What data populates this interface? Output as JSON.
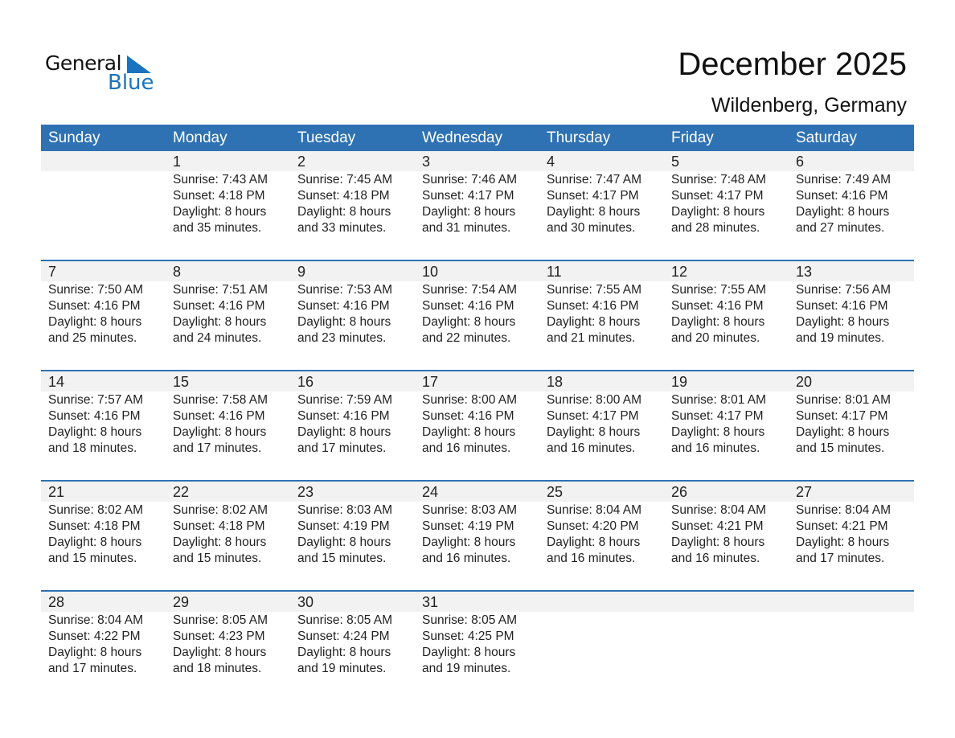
{
  "logo": {
    "text1": "General",
    "text2": "Blue",
    "color": "#1a73be"
  },
  "title": "December 2025",
  "location": "Wildenberg, Germany",
  "colors": {
    "header": "#2e72b3",
    "band": "#f2f2f2"
  },
  "weekdays": [
    "Sunday",
    "Monday",
    "Tuesday",
    "Wednesday",
    "Thursday",
    "Friday",
    "Saturday"
  ],
  "weeks": [
    [
      null,
      {
        "day": "1",
        "sunrise": "Sunrise: 7:43 AM",
        "sunset": "Sunset: 4:18 PM",
        "daylight": "Daylight: 8 hours",
        "minutes": "and 35 minutes."
      },
      {
        "day": "2",
        "sunrise": "Sunrise: 7:45 AM",
        "sunset": "Sunset: 4:18 PM",
        "daylight": "Daylight: 8 hours",
        "minutes": "and 33 minutes."
      },
      {
        "day": "3",
        "sunrise": "Sunrise: 7:46 AM",
        "sunset": "Sunset: 4:17 PM",
        "daylight": "Daylight: 8 hours",
        "minutes": "and 31 minutes."
      },
      {
        "day": "4",
        "sunrise": "Sunrise: 7:47 AM",
        "sunset": "Sunset: 4:17 PM",
        "daylight": "Daylight: 8 hours",
        "minutes": "and 30 minutes."
      },
      {
        "day": "5",
        "sunrise": "Sunrise: 7:48 AM",
        "sunset": "Sunset: 4:17 PM",
        "daylight": "Daylight: 8 hours",
        "minutes": "and 28 minutes."
      },
      {
        "day": "6",
        "sunrise": "Sunrise: 7:49 AM",
        "sunset": "Sunset: 4:16 PM",
        "daylight": "Daylight: 8 hours",
        "minutes": "and 27 minutes."
      }
    ],
    [
      {
        "day": "7",
        "sunrise": "Sunrise: 7:50 AM",
        "sunset": "Sunset: 4:16 PM",
        "daylight": "Daylight: 8 hours",
        "minutes": "and 25 minutes."
      },
      {
        "day": "8",
        "sunrise": "Sunrise: 7:51 AM",
        "sunset": "Sunset: 4:16 PM",
        "daylight": "Daylight: 8 hours",
        "minutes": "and 24 minutes."
      },
      {
        "day": "9",
        "sunrise": "Sunrise: 7:53 AM",
        "sunset": "Sunset: 4:16 PM",
        "daylight": "Daylight: 8 hours",
        "minutes": "and 23 minutes."
      },
      {
        "day": "10",
        "sunrise": "Sunrise: 7:54 AM",
        "sunset": "Sunset: 4:16 PM",
        "daylight": "Daylight: 8 hours",
        "minutes": "and 22 minutes."
      },
      {
        "day": "11",
        "sunrise": "Sunrise: 7:55 AM",
        "sunset": "Sunset: 4:16 PM",
        "daylight": "Daylight: 8 hours",
        "minutes": "and 21 minutes."
      },
      {
        "day": "12",
        "sunrise": "Sunrise: 7:55 AM",
        "sunset": "Sunset: 4:16 PM",
        "daylight": "Daylight: 8 hours",
        "minutes": "and 20 minutes."
      },
      {
        "day": "13",
        "sunrise": "Sunrise: 7:56 AM",
        "sunset": "Sunset: 4:16 PM",
        "daylight": "Daylight: 8 hours",
        "minutes": "and 19 minutes."
      }
    ],
    [
      {
        "day": "14",
        "sunrise": "Sunrise: 7:57 AM",
        "sunset": "Sunset: 4:16 PM",
        "daylight": "Daylight: 8 hours",
        "minutes": "and 18 minutes."
      },
      {
        "day": "15",
        "sunrise": "Sunrise: 7:58 AM",
        "sunset": "Sunset: 4:16 PM",
        "daylight": "Daylight: 8 hours",
        "minutes": "and 17 minutes."
      },
      {
        "day": "16",
        "sunrise": "Sunrise: 7:59 AM",
        "sunset": "Sunset: 4:16 PM",
        "daylight": "Daylight: 8 hours",
        "minutes": "and 17 minutes."
      },
      {
        "day": "17",
        "sunrise": "Sunrise: 8:00 AM",
        "sunset": "Sunset: 4:16 PM",
        "daylight": "Daylight: 8 hours",
        "minutes": "and 16 minutes."
      },
      {
        "day": "18",
        "sunrise": "Sunrise: 8:00 AM",
        "sunset": "Sunset: 4:17 PM",
        "daylight": "Daylight: 8 hours",
        "minutes": "and 16 minutes."
      },
      {
        "day": "19",
        "sunrise": "Sunrise: 8:01 AM",
        "sunset": "Sunset: 4:17 PM",
        "daylight": "Daylight: 8 hours",
        "minutes": "and 16 minutes."
      },
      {
        "day": "20",
        "sunrise": "Sunrise: 8:01 AM",
        "sunset": "Sunset: 4:17 PM",
        "daylight": "Daylight: 8 hours",
        "minutes": "and 15 minutes."
      }
    ],
    [
      {
        "day": "21",
        "sunrise": "Sunrise: 8:02 AM",
        "sunset": "Sunset: 4:18 PM",
        "daylight": "Daylight: 8 hours",
        "minutes": "and 15 minutes."
      },
      {
        "day": "22",
        "sunrise": "Sunrise: 8:02 AM",
        "sunset": "Sunset: 4:18 PM",
        "daylight": "Daylight: 8 hours",
        "minutes": "and 15 minutes."
      },
      {
        "day": "23",
        "sunrise": "Sunrise: 8:03 AM",
        "sunset": "Sunset: 4:19 PM",
        "daylight": "Daylight: 8 hours",
        "minutes": "and 15 minutes."
      },
      {
        "day": "24",
        "sunrise": "Sunrise: 8:03 AM",
        "sunset": "Sunset: 4:19 PM",
        "daylight": "Daylight: 8 hours",
        "minutes": "and 16 minutes."
      },
      {
        "day": "25",
        "sunrise": "Sunrise: 8:04 AM",
        "sunset": "Sunset: 4:20 PM",
        "daylight": "Daylight: 8 hours",
        "minutes": "and 16 minutes."
      },
      {
        "day": "26",
        "sunrise": "Sunrise: 8:04 AM",
        "sunset": "Sunset: 4:21 PM",
        "daylight": "Daylight: 8 hours",
        "minutes": "and 16 minutes."
      },
      {
        "day": "27",
        "sunrise": "Sunrise: 8:04 AM",
        "sunset": "Sunset: 4:21 PM",
        "daylight": "Daylight: 8 hours",
        "minutes": "and 17 minutes."
      }
    ],
    [
      {
        "day": "28",
        "sunrise": "Sunrise: 8:04 AM",
        "sunset": "Sunset: 4:22 PM",
        "daylight": "Daylight: 8 hours",
        "minutes": "and 17 minutes."
      },
      {
        "day": "29",
        "sunrise": "Sunrise: 8:05 AM",
        "sunset": "Sunset: 4:23 PM",
        "daylight": "Daylight: 8 hours",
        "minutes": "and 18 minutes."
      },
      {
        "day": "30",
        "sunrise": "Sunrise: 8:05 AM",
        "sunset": "Sunset: 4:24 PM",
        "daylight": "Daylight: 8 hours",
        "minutes": "and 19 minutes."
      },
      {
        "day": "31",
        "sunrise": "Sunrise: 8:05 AM",
        "sunset": "Sunset: 4:25 PM",
        "daylight": "Daylight: 8 hours",
        "minutes": "and 19 minutes."
      },
      null,
      null,
      null
    ]
  ]
}
